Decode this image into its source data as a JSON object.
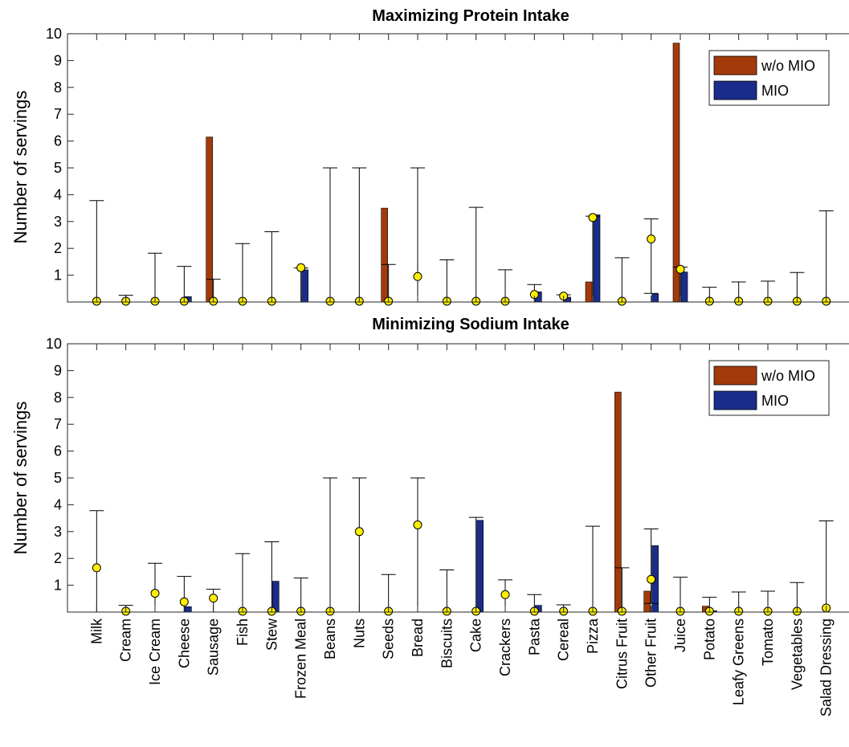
{
  "chart_data": [
    {
      "type": "bar",
      "title": "Maximizing Protein Intake",
      "xlabel": "",
      "ylabel": "Number of servings",
      "ylim": [
        0,
        10
      ],
      "yticks": [
        1,
        2,
        3,
        4,
        5,
        6,
        7,
        8,
        9,
        10
      ],
      "legend_position": "top-right",
      "categories": [
        "Milk",
        "Cream",
        "Ice Cream",
        "Cheese",
        "Sausage",
        "Fish",
        "Stew",
        "Frozen Meal",
        "Beans",
        "Nuts",
        "Seeds",
        "Bread",
        "Biscuits",
        "Cake",
        "Crackers",
        "Pasta",
        "Cereal",
        "Pizza",
        "Citrus Fruit",
        "Other Fruit",
        "Juice",
        "Potato",
        "Leafy Greens",
        "Tomato",
        "Vegetables",
        "Salad Dressing"
      ],
      "series": [
        {
          "name": "w/o MIO",
          "color": "#a33a0a",
          "values": [
            0,
            0,
            0,
            0,
            6.15,
            0,
            0,
            0,
            0,
            0,
            3.5,
            0,
            0,
            0,
            0,
            0,
            0,
            0.75,
            0,
            0,
            9.65,
            0,
            0,
            0,
            0,
            0
          ]
        },
        {
          "name": "MIO",
          "color": "#1a2d8c",
          "values": [
            0,
            0,
            0,
            0.2,
            0,
            0,
            0,
            1.2,
            0,
            0,
            0,
            0,
            0,
            0,
            0,
            0.38,
            0.18,
            3.25,
            0,
            0.3,
            1.12,
            0,
            0,
            0,
            0,
            0
          ]
        }
      ],
      "upper_bounds": [
        3.78,
        0.25,
        1.82,
        1.33,
        0.85,
        2.18,
        2.62,
        1.27,
        5,
        5,
        1.4,
        5,
        1.57,
        3.53,
        1.2,
        0.65,
        0.27,
        3.2,
        1.65,
        3.1,
        1.3,
        0.55,
        0.75,
        0.78,
        1.1,
        3.4
      ],
      "lower_bounds": [
        0,
        0,
        0,
        0,
        0,
        0,
        0,
        0,
        0,
        0,
        0,
        0,
        0,
        0,
        0,
        0,
        0,
        0,
        0,
        0.32,
        0,
        0,
        0,
        0,
        0,
        0
      ],
      "markers": [
        0.03,
        0.03,
        0.03,
        0.03,
        0.03,
        0.03,
        0.03,
        1.28,
        0.03,
        0.03,
        0.03,
        0.95,
        0.03,
        0.03,
        0.03,
        0.28,
        0.22,
        3.15,
        0.03,
        2.35,
        1.22,
        0.03,
        0.03,
        0.03,
        0.03,
        0.03
      ],
      "marker_color": "#ffee00"
    },
    {
      "type": "bar",
      "title": "Minimizing Sodium Intake",
      "xlabel": "",
      "ylabel": "Number of servings",
      "ylim": [
        0,
        10
      ],
      "yticks": [
        1,
        2,
        3,
        4,
        5,
        6,
        7,
        8,
        9,
        10
      ],
      "legend_position": "top-right",
      "categories": [
        "Milk",
        "Cream",
        "Ice Cream",
        "Cheese",
        "Sausage",
        "Fish",
        "Stew",
        "Frozen Meal",
        "Beans",
        "Nuts",
        "Seeds",
        "Bread",
        "Biscuits",
        "Cake",
        "Crackers",
        "Pasta",
        "Cereal",
        "Pizza",
        "Citrus Fruit",
        "Other Fruit",
        "Juice",
        "Potato",
        "Leafy Greens",
        "Tomato",
        "Vegetables",
        "Salad Dressing"
      ],
      "series": [
        {
          "name": "w/o MIO",
          "color": "#a33a0a",
          "values": [
            0,
            0,
            0,
            0,
            0,
            0,
            0,
            0,
            0,
            0,
            0,
            0,
            0,
            0,
            0,
            0,
            0,
            0,
            8.2,
            0.78,
            0,
            0.22,
            0,
            0,
            0,
            0
          ]
        },
        {
          "name": "MIO",
          "color": "#1a2d8c",
          "values": [
            0,
            0,
            0,
            0.2,
            0,
            0,
            1.15,
            0,
            0,
            0,
            0,
            0,
            0,
            3.42,
            0,
            0.25,
            0,
            0,
            0,
            2.48,
            0,
            0.05,
            0,
            0,
            0,
            0
          ]
        }
      ],
      "upper_bounds": [
        3.78,
        0.25,
        1.82,
        1.33,
        0.85,
        2.18,
        2.62,
        1.27,
        5,
        5,
        1.4,
        5,
        1.57,
        3.53,
        1.2,
        0.65,
        0.27,
        3.2,
        1.65,
        3.1,
        1.3,
        0.55,
        0.75,
        0.78,
        1.1,
        3.4
      ],
      "lower_bounds": [
        0,
        0,
        0,
        0,
        0,
        0,
        0,
        0,
        0,
        0,
        0,
        0,
        0,
        0,
        0,
        0,
        0,
        0,
        0,
        0.32,
        0,
        0,
        0,
        0,
        0,
        0
      ],
      "markers": [
        1.65,
        0.03,
        0.7,
        0.38,
        0.52,
        0.03,
        0.03,
        0.03,
        0.03,
        3.0,
        0.03,
        3.25,
        0.03,
        0.03,
        0.65,
        0.03,
        0.03,
        0.03,
        0.03,
        1.22,
        0.03,
        0.03,
        0.03,
        0.03,
        0.03,
        0.15
      ],
      "marker_color": "#ffee00"
    }
  ]
}
